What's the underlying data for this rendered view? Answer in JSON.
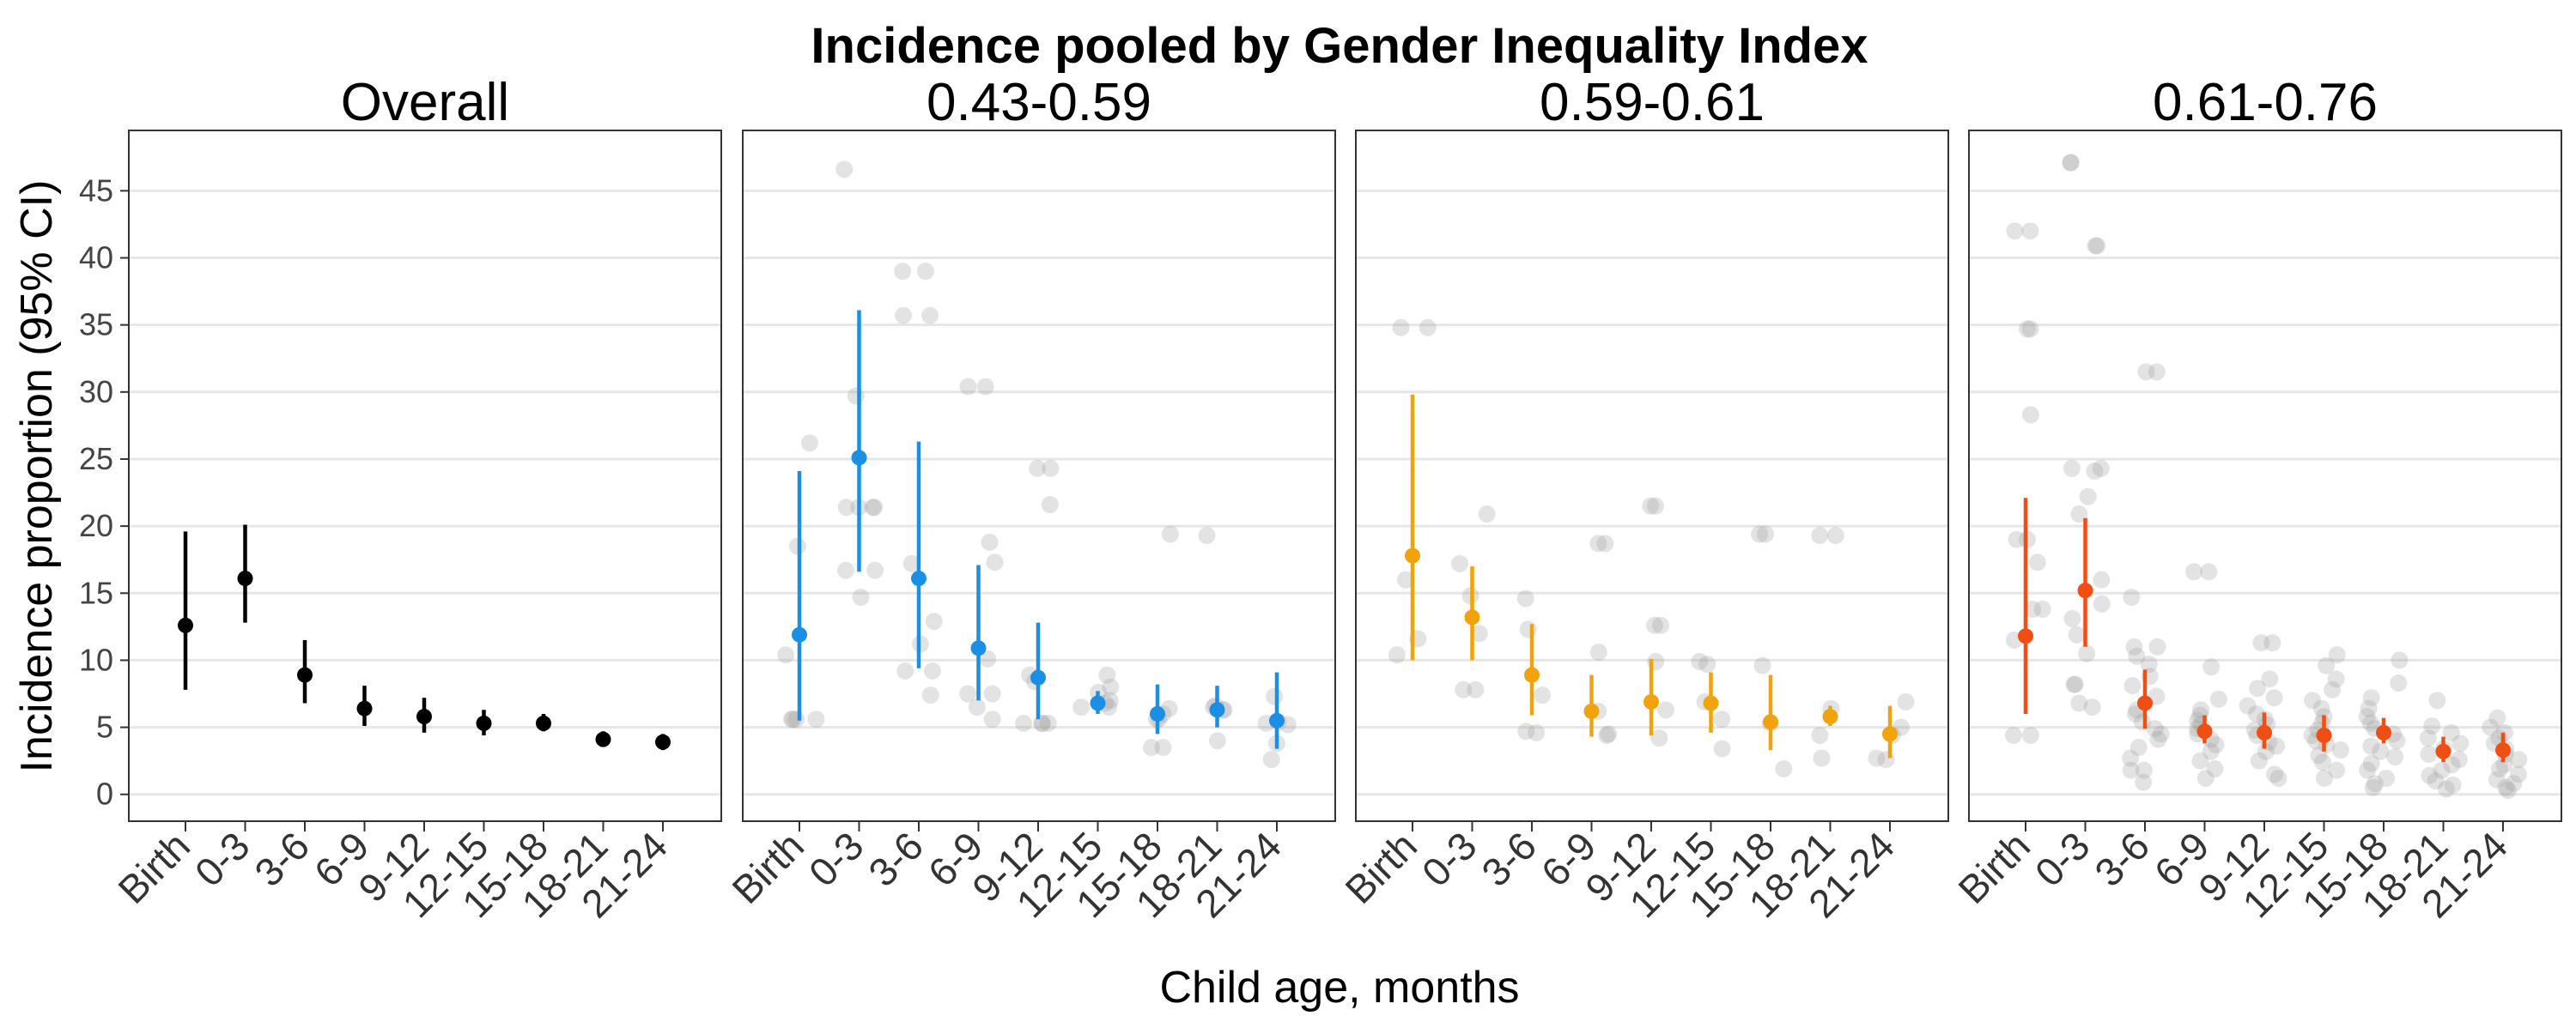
{
  "chart_data": {
    "type": "scatter",
    "title": "Incidence pooled by Gender Inequality Index",
    "xlabel": "Child age, months",
    "ylabel": "Incidence proportion (95% CI)",
    "categories": [
      "Birth",
      "0-3",
      "3-6",
      "6-9",
      "9-12",
      "12-15",
      "15-18",
      "18-21",
      "21-24"
    ],
    "y_ticks": [
      0,
      5,
      10,
      15,
      20,
      25,
      30,
      35,
      40,
      45
    ],
    "ylim": [
      -2,
      49.5
    ],
    "grid": "horizontal",
    "colors": {
      "Overall": "#000000",
      "0.43-0.59": "#1a8fe3",
      "0.59-0.61": "#f0a30a",
      "0.61-0.76": "#f04e12",
      "raw": "#9a9a9a"
    },
    "panels": [
      {
        "name": "Overall",
        "estimate": [
          12.6,
          16.1,
          8.9,
          6.4,
          5.8,
          5.3,
          5.3,
          4.1,
          3.9
        ],
        "lower": [
          7.8,
          12.8,
          6.8,
          5.1,
          4.6,
          4.4,
          4.7,
          3.6,
          3.3
        ],
        "upper": [
          19.6,
          20.1,
          11.5,
          8.1,
          7.2,
          6.3,
          6.0,
          4.7,
          4.5
        ],
        "raw": [
          [],
          [],
          [],
          [],
          [],
          [],
          [],
          [],
          []
        ]
      },
      {
        "name": "0.43-0.59",
        "estimate": [
          11.9,
          25.1,
          16.1,
          10.9,
          8.7,
          6.8,
          6.0,
          6.3,
          5.5
        ],
        "lower": [
          5.5,
          16.6,
          9.4,
          7.0,
          5.6,
          6.0,
          4.5,
          5.0,
          3.4
        ],
        "upper": [
          24.1,
          36.1,
          26.3,
          17.1,
          12.8,
          7.7,
          8.2,
          8.1,
          9.1
        ],
        "raw": [
          [
            5.6,
            5.6,
            10.4,
            18.5,
            26.2,
            5.6,
            5.6
          ],
          [
            14.7,
            16.7,
            21.4,
            21.4,
            21.4,
            29.7,
            46.6,
            16.7,
            21.4
          ],
          [
            9.2,
            9.2,
            12.9,
            17.2,
            35.7,
            39.0,
            35.7,
            39.0,
            11.2,
            7.4
          ],
          [
            5.6,
            7.5,
            7.5,
            10.1,
            17.3,
            18.8,
            30.4,
            30.4,
            6.5
          ],
          [
            5.3,
            5.3,
            5.3,
            8.4,
            8.9,
            21.6,
            24.3,
            24.3,
            5.3
          ],
          [
            6.5,
            6.8,
            7.0,
            7.6,
            8.0,
            8.9,
            6.5
          ],
          [
            3.5,
            3.5,
            5.6,
            6.0,
            6.4,
            19.4,
            5.6
          ],
          [
            4.0,
            6.3,
            6.3,
            6.5,
            6.6,
            19.3
          ],
          [
            2.6,
            3.8,
            5.2,
            5.4,
            7.3,
            5.3
          ]
        ]
      },
      {
        "name": "0.59-0.61",
        "estimate": [
          17.8,
          13.2,
          8.9,
          6.2,
          6.9,
          6.8,
          5.4,
          5.8,
          4.5
        ],
        "lower": [
          10.0,
          10.0,
          5.9,
          4.3,
          4.4,
          4.6,
          3.3,
          5.1,
          2.7
        ],
        "upper": [
          29.8,
          17.0,
          12.7,
          8.9,
          10.1,
          9.1,
          8.9,
          6.6,
          6.6
        ],
        "raw": [
          [
            10.4,
            11.6,
            16.0,
            34.8,
            34.8
          ],
          [
            7.8,
            7.8,
            12.0,
            14.8,
            17.2,
            20.9
          ],
          [
            4.6,
            4.7,
            7.4,
            12.3,
            14.6
          ],
          [
            4.4,
            4.5,
            6.2,
            10.6,
            18.7,
            18.7
          ],
          [
            4.2,
            6.3,
            9.9,
            12.6,
            12.6,
            21.5,
            21.5
          ],
          [
            3.4,
            5.6,
            6.9,
            9.7,
            9.9
          ],
          [
            1.9,
            5.3,
            9.6,
            19.4,
            19.4
          ],
          [
            2.7,
            4.4,
            6.4,
            19.3,
            19.3
          ],
          [
            2.6,
            2.7,
            4.4,
            5.0,
            6.9
          ]
        ]
      },
      {
        "name": "0.61-0.76",
        "estimate": [
          11.8,
          15.2,
          6.8,
          4.7,
          4.6,
          4.4,
          4.6,
          3.2,
          3.3
        ],
        "lower": [
          6.0,
          11.0,
          4.9,
          3.8,
          3.4,
          3.2,
          3.8,
          2.4,
          2.4
        ],
        "upper": [
          22.1,
          20.6,
          9.3,
          5.9,
          6.1,
          5.9,
          5.7,
          4.3,
          4.6
        ],
        "raw": [
          [
            4.4,
            4.4,
            11.5,
            13.8,
            13.8,
            17.3,
            19.0,
            19.0,
            28.3,
            34.7,
            34.7,
            42.0,
            42.0
          ],
          [
            6.5,
            6.8,
            8.2,
            8.2,
            10.5,
            11.9,
            13.1,
            14.2,
            16.0,
            20.9,
            22.2,
            24.1,
            24.3,
            24.3,
            40.9,
            40.9,
            47.1,
            47.1
          ],
          [
            0.9,
            1.8,
            1.8,
            2.7,
            3.5,
            4.1,
            4.5,
            4.9,
            5.4,
            6.0,
            6.3,
            7.3,
            8.1,
            8.8,
            9.7,
            10.3,
            11.0,
            11.0,
            14.7,
            31.5,
            31.5
          ],
          [
            1.2,
            1.9,
            2.5,
            3.2,
            3.7,
            4.1,
            4.5,
            4.9,
            5.2,
            5.5,
            5.9,
            6.3,
            7.1,
            9.5,
            16.6,
            16.6
          ],
          [
            1.2,
            1.5,
            2.5,
            3.2,
            3.6,
            3.9,
            4.4,
            4.8,
            5.2,
            5.6,
            6.0,
            6.6,
            7.2,
            7.9,
            8.6,
            11.3,
            11.3
          ],
          [
            1.2,
            1.8,
            2.4,
            2.9,
            3.3,
            3.7,
            4.0,
            4.4,
            4.8,
            5.3,
            5.8,
            6.4,
            7.0,
            7.8,
            8.6,
            9.6,
            10.4
          ],
          [
            0.5,
            0.8,
            1.2,
            1.8,
            2.3,
            2.8,
            3.2,
            3.6,
            4.0,
            4.5,
            4.9,
            5.3,
            5.8,
            6.4,
            7.2,
            8.3,
            10.0
          ],
          [
            0.4,
            0.7,
            1.0,
            1.4,
            1.8,
            2.2,
            2.6,
            3.0,
            3.4,
            3.8,
            4.2,
            4.6,
            5.1,
            7.0
          ],
          [
            0.3,
            0.5,
            0.8,
            1.1,
            1.5,
            1.9,
            2.2,
            2.6,
            3.0,
            3.4,
            3.8,
            4.2,
            4.6,
            5.0,
            5.7
          ]
        ]
      }
    ]
  }
}
